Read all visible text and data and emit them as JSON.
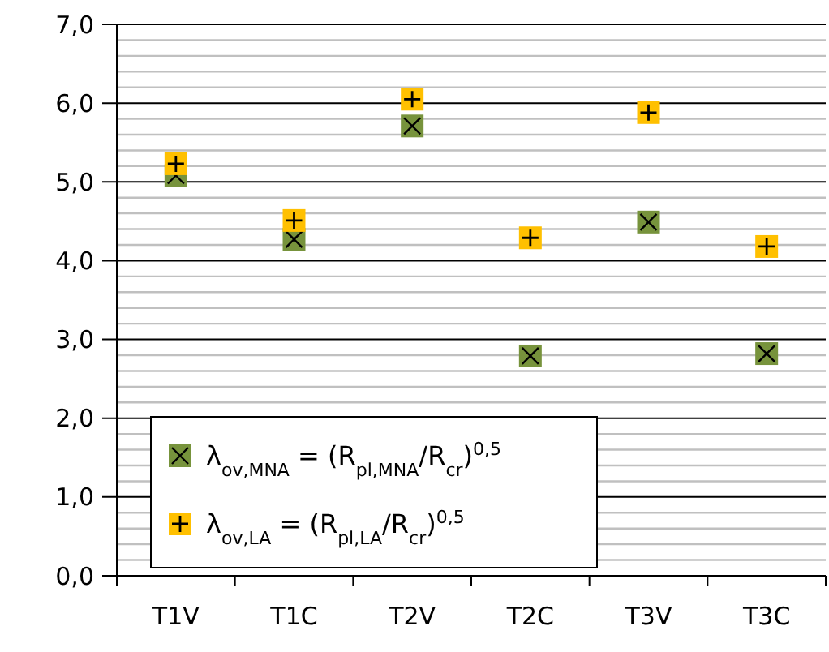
{
  "chart_data": {
    "type": "scatter",
    "categories": [
      "T1V",
      "T1C",
      "T2V",
      "T2C",
      "T3V",
      "T3C"
    ],
    "series": [
      {
        "name": "λ$_{ov,MNA}$ = (R$_{pl,MNA}$/R$_{cr}$)$^{0,5}$",
        "color": "#77933c",
        "marker": "square",
        "values": [
          5.08,
          4.27,
          5.71,
          2.79,
          4.49,
          2.82
        ]
      },
      {
        "name": "λ$_{ov,LA}$ = (R$_{pl,LA}$/R$_{cr}$)$^{0,5}$",
        "color": "#ffc000",
        "marker": "square",
        "values": [
          5.23,
          4.51,
          6.05,
          4.29,
          5.88,
          4.18
        ]
      }
    ],
    "ylim": [
      0,
      7
    ],
    "yticks": [
      {
        "value": 0,
        "label": "0,0"
      },
      {
        "value": 0.2,
        "label": null
      },
      {
        "value": 0.4,
        "label": null
      },
      {
        "value": 0.6,
        "label": null
      },
      {
        "value": 0.8,
        "label": null
      },
      {
        "value": 1,
        "label": "1,0"
      },
      {
        "value": 1.2,
        "label": null
      },
      {
        "value": 1.4,
        "label": null
      },
      {
        "value": 1.6,
        "label": null
      },
      {
        "value": 1.8,
        "label": null
      },
      {
        "value": 2,
        "label": "2,0"
      },
      {
        "value": 2.2,
        "label": null
      },
      {
        "value": 2.4,
        "label": null
      },
      {
        "value": 2.6,
        "label": null
      },
      {
        "value": 2.8,
        "label": null
      },
      {
        "value": 3,
        "label": "3,0"
      },
      {
        "value": 3.2,
        "label": null
      },
      {
        "value": 3.4,
        "label": null
      },
      {
        "value": 3.6,
        "label": null
      },
      {
        "value": 3.8,
        "label": null
      },
      {
        "value": 4,
        "label": "4,0"
      },
      {
        "value": 4.2,
        "label": null
      },
      {
        "value": 4.4,
        "label": null
      },
      {
        "value": 4.6,
        "label": null
      },
      {
        "value": 4.8,
        "label": null
      },
      {
        "value": 5,
        "label": "5,0"
      },
      {
        "value": 5.2,
        "label": null
      },
      {
        "value": 5.4,
        "label": null
      },
      {
        "value": 5.6,
        "label": null
      },
      {
        "value": 5.8,
        "label": null
      },
      {
        "value": 6,
        "label": "6,0"
      },
      {
        "value": 6.2,
        "label": null
      },
      {
        "value": 6.4,
        "label": null
      },
      {
        "value": 6.6,
        "label": null
      },
      {
        "value": 6.8,
        "label": null
      },
      {
        "value": 7,
        "label": "7,0"
      }
    ],
    "grid": true,
    "legend": "bottom left"
  }
}
